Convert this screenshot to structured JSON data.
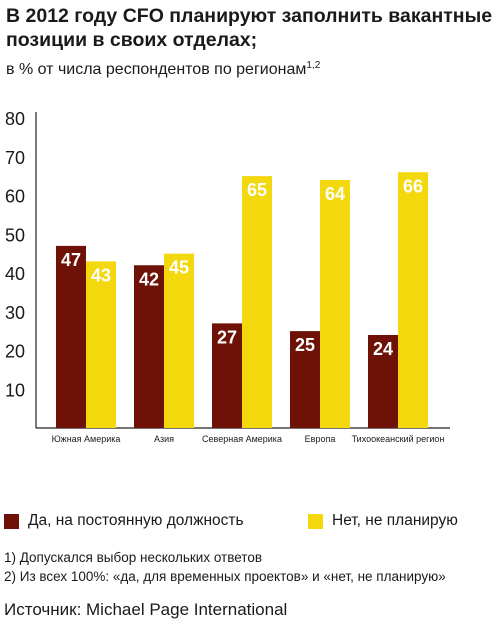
{
  "title": "В 2012 году CFO планируют заполнить вакантные позиции в своих отделах;",
  "subtitle": "в % от числа респондентов по регионам",
  "subtitle_sup": "1,2",
  "colors": {
    "series_1": "#6e1106",
    "series_2": "#f2d80c",
    "axis": "#222222",
    "bar_label": "#ffffff"
  },
  "chart_data": {
    "type": "bar",
    "categories": [
      "Южная Америка",
      "Азия",
      "Северная Америка",
      "Европа",
      "Тихоокеанский регион"
    ],
    "series": [
      {
        "name": "Да, на постоянную должность",
        "values": [
          47,
          42,
          27,
          25,
          24
        ]
      },
      {
        "name": "Нет, не планирую",
        "values": [
          43,
          45,
          65,
          64,
          66
        ]
      }
    ],
    "ylim": [
      0,
      80
    ],
    "yticks": [
      10,
      20,
      30,
      40,
      50,
      60,
      70,
      80
    ],
    "grid": false,
    "legend": "bottom"
  },
  "footnotes": [
    "1) Допускался выбор нескольких ответов",
    "2) Из всех 100%: «да, для временных проектов» и «нет, не планирую»"
  ],
  "source": "Источник: Michael Page International"
}
